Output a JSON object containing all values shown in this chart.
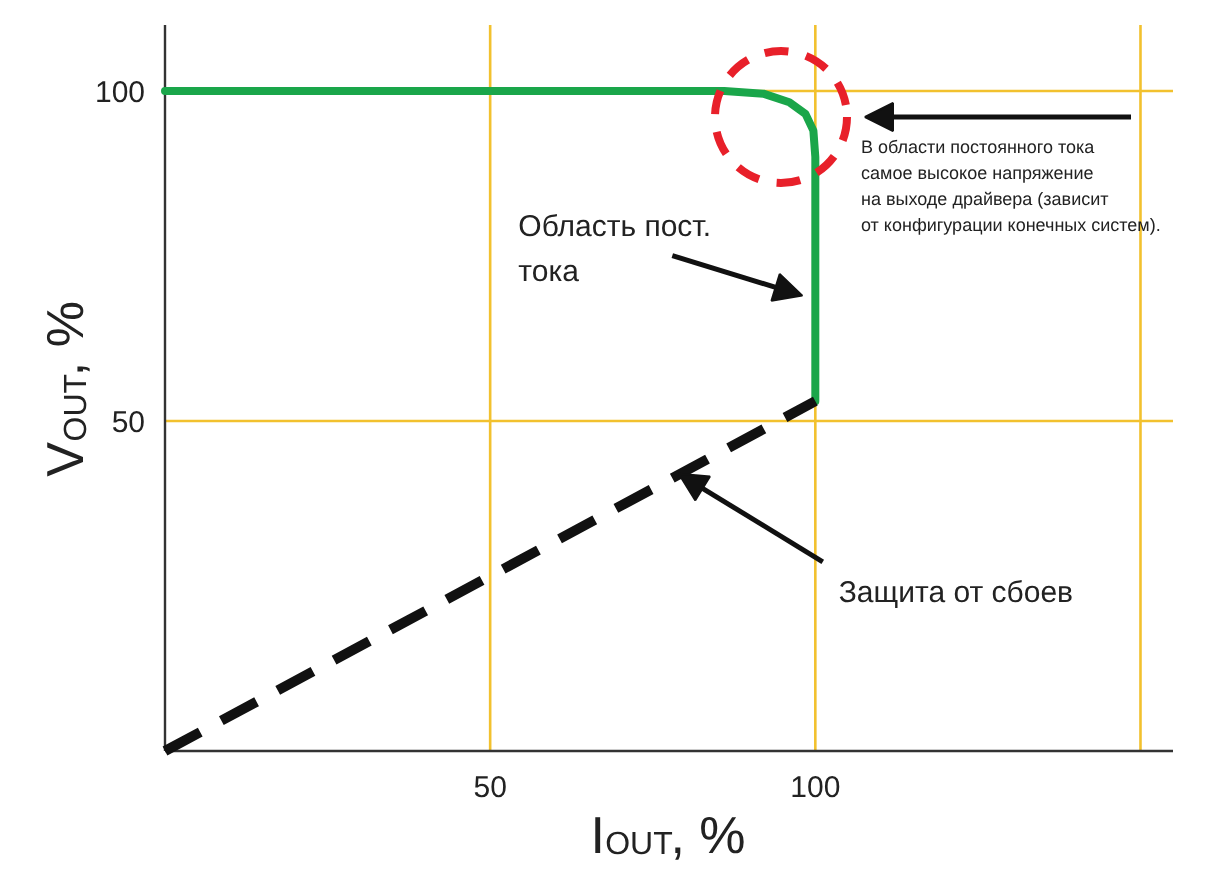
{
  "chart_data": {
    "type": "line",
    "xlabel": "I$_{OUT}$, %",
    "ylabel": "V$_{OUT}$, %",
    "xlim": [
      0,
      155
    ],
    "ylim": [
      0,
      110
    ],
    "xticks": [
      50,
      100,
      {
        "value": 150,
        "label": null
      }
    ],
    "yticks": [
      50,
      100
    ],
    "grid": true,
    "series": [
      {
        "color": "#1aa64a",
        "x": [
          0,
          86,
          92,
          96,
          98.5,
          99.7,
          100,
          100
        ],
        "values": [
          100,
          100,
          99.6,
          98.3,
          96.5,
          94,
          90,
          53
        ],
        "line_style": "solid"
      },
      {
        "color": "#111111",
        "x": [
          0,
          100
        ],
        "values": [
          0,
          53
        ],
        "line_style": "dashed"
      }
    ],
    "annotations": [
      "В области постоянного тока\nсамое высокое напряжение\nна выходе драйвера (зависит\nот конфигурации конечных систем).",
      {
        "text": "Область пост.\nтока",
        "x": 98,
        "y": 69
      },
      {
        "text": "Защита от сбоев",
        "x": 79,
        "y": 42
      }
    ]
  }
}
